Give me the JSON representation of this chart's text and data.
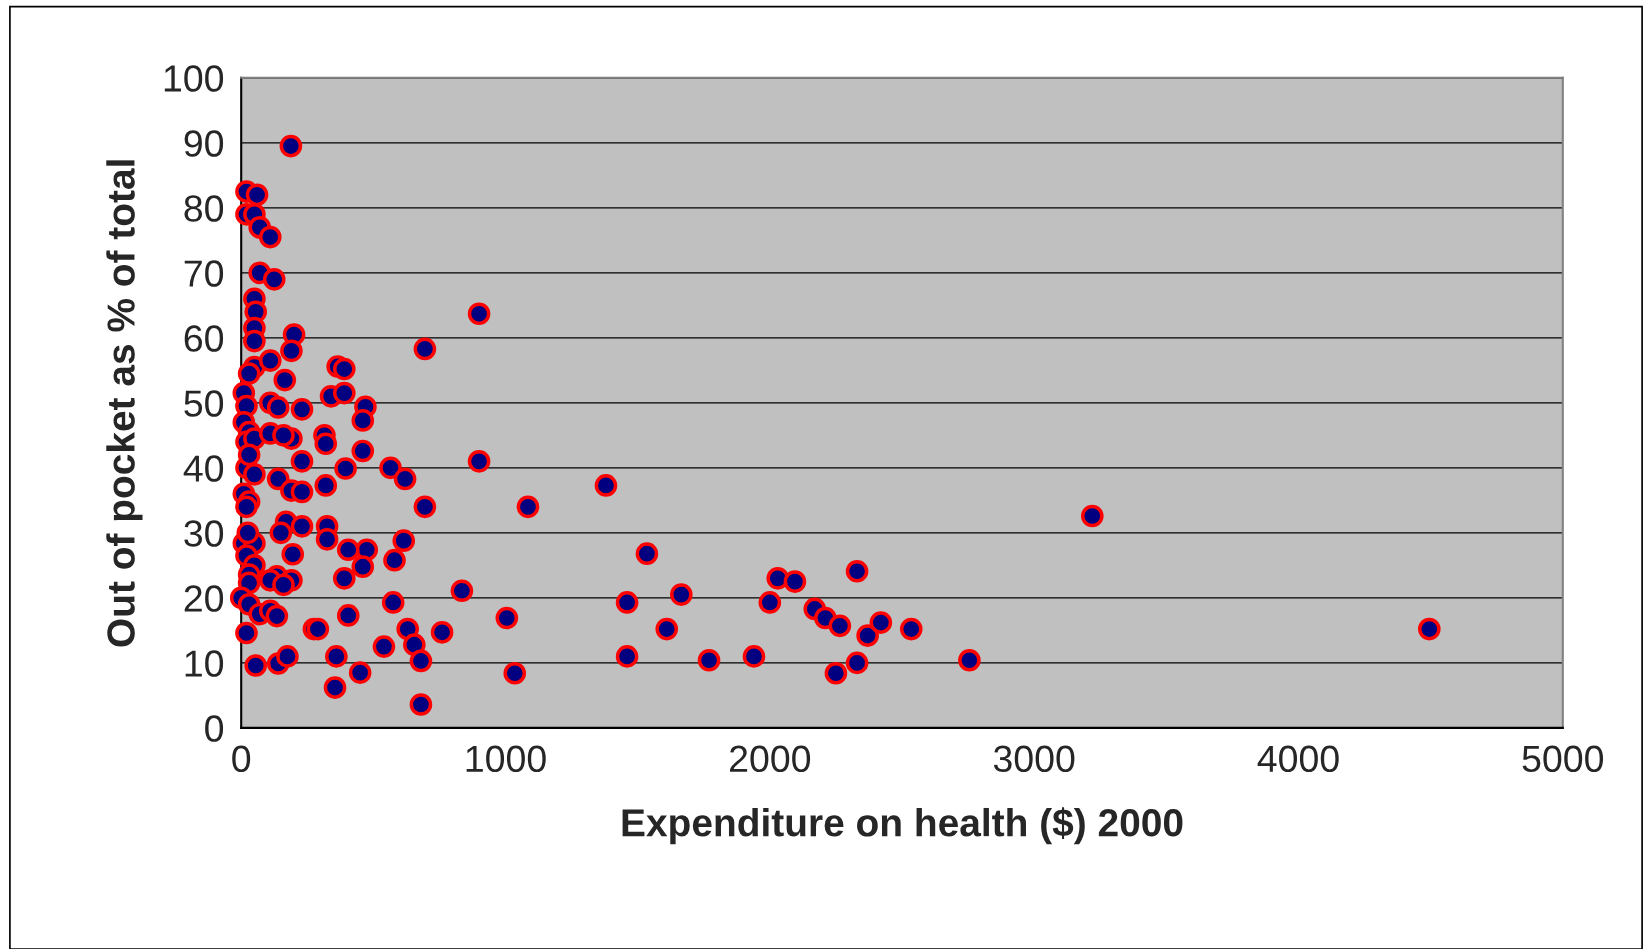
{
  "chart_data": {
    "type": "scatter",
    "xlabel": "Expenditure on health ($) 2000",
    "ylabel": "Out of pocket as % of total",
    "xlim": [
      0,
      5000
    ],
    "xticks": [
      0,
      1000,
      2000,
      3000,
      4000,
      5000
    ],
    "ylim": [
      0,
      100
    ],
    "yticks": [
      0,
      10,
      20,
      30,
      40,
      50,
      60,
      70,
      80,
      90,
      100
    ],
    "grid": "y",
    "marker": "circle",
    "legend": false,
    "series": [
      {
        "color": "#000080",
        "x": [
          188,
          20,
          60,
          20,
          50,
          70,
          110,
          70,
          125,
          50,
          55,
          50,
          50,
          50,
          30,
          200,
          190,
          110,
          165,
          10,
          20,
          110,
          140,
          230,
          10,
          30,
          20,
          50,
          110,
          190,
          160,
          20,
          30,
          50,
          140,
          230,
          190,
          230,
          10,
          30,
          20,
          170,
          230,
          150,
          10,
          50,
          25,
          195,
          20,
          50,
          30,
          135,
          190,
          110,
          160,
          30,
          0,
          30,
          70,
          110,
          135,
          20,
          55,
          140,
          175,
          365,
          390,
          340,
          390,
          470,
          460,
          315,
          320,
          460,
          395,
          320,
          325,
          325,
          475,
          405,
          460,
          390,
          575,
          405,
          275,
          290,
          360,
          355,
          450,
          540,
          565,
          620,
          580,
          615,
          630,
          655,
          680,
          680,
          695,
          695,
          760,
          900,
          900,
          835,
          1005,
          1085,
          1035,
          1380,
          1535,
          1460,
          1460,
          1665,
          1610,
          1770,
          1940,
          2000,
          2030,
          2095,
          2170,
          2210,
          2265,
          2330,
          2370,
          2420,
          2535,
          2250,
          2330,
          2755,
          3220,
          4495
        ],
        "values": [
          89.5,
          82.5,
          82,
          79,
          79,
          77,
          75.5,
          70,
          69,
          66,
          64,
          61.5,
          59.5,
          55.5,
          54.5,
          60.5,
          58,
          56.5,
          53.5,
          51.5,
          49.5,
          50,
          49.3,
          49,
          47,
          45.5,
          44,
          44.5,
          45.3,
          44.5,
          45,
          40,
          42,
          39,
          38.3,
          41,
          36.5,
          36.3,
          36,
          34.8,
          34,
          31.7,
          31,
          30,
          28.4,
          28.4,
          30,
          26.7,
          26.5,
          25,
          23.6,
          23.3,
          22.7,
          22.7,
          22,
          22.3,
          20,
          19,
          17.5,
          18,
          17.2,
          14.6,
          9.6,
          9.9,
          11,
          55.6,
          55.2,
          51,
          51.5,
          49.4,
          47.3,
          45,
          43.7,
          42.6,
          39.9,
          37.3,
          31,
          29,
          27.4,
          27.4,
          24.8,
          23,
          19.3,
          17.3,
          15.2,
          15.2,
          11,
          6.2,
          8.5,
          12.5,
          40,
          38.3,
          25.8,
          28.8,
          15.2,
          12.8,
          10.3,
          3.6,
          58.3,
          34,
          14.7,
          63.7,
          41,
          21.1,
          16.9,
          34,
          8.4,
          37.3,
          26.8,
          19.3,
          11,
          20.5,
          15.2,
          10.4,
          11,
          19.3,
          23,
          22.5,
          18.3,
          16.9,
          15.7,
          24.1,
          14.2,
          16.2,
          15.2,
          8.4,
          10,
          10.4,
          32.6,
          15.2
        ]
      }
    ]
  }
}
